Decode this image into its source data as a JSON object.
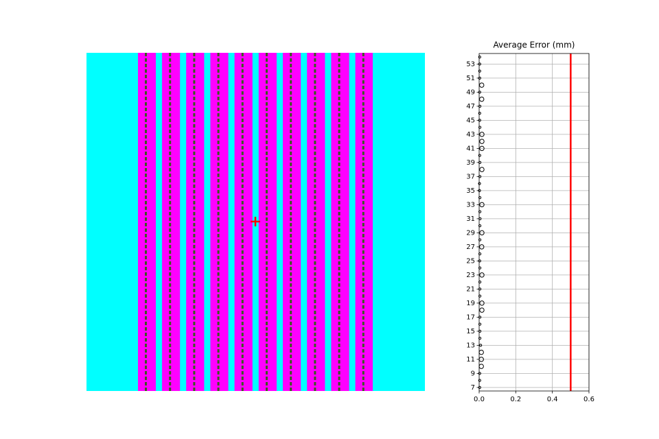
{
  "chart_data": {
    "type": "scatter",
    "orientation": "horizontal",
    "title": "Average Error (mm)",
    "categories": [
      7,
      null,
      9,
      null,
      11,
      null,
      13,
      null,
      15,
      null,
      17,
      null,
      19,
      null,
      21,
      null,
      23,
      null,
      25,
      null,
      27,
      null,
      29,
      null,
      31,
      null,
      33,
      null,
      35,
      null,
      37,
      null,
      39,
      null,
      41,
      null,
      43,
      null,
      45,
      null,
      47,
      null,
      49,
      null,
      51,
      null,
      53,
      null
    ],
    "values": [
      0.003,
      0.003,
      0.003,
      0.012,
      0.012,
      0.012,
      0.008,
      0.004,
      0.004,
      0.004,
      0.004,
      0.015,
      0.015,
      0.004,
      0.004,
      0.004,
      0.015,
      0.004,
      0.003,
      0.004,
      0.014,
      0.004,
      0.015,
      0.004,
      0.005,
      0.004,
      0.015,
      0.004,
      0.002,
      0.002,
      0.004,
      0.015,
      0.004,
      0.003,
      0.015,
      0.015,
      0.015,
      0.004,
      0.003,
      0.003,
      0.004,
      0.014,
      0.003,
      0.014,
      0.003,
      0.003,
      0.003,
      0.003
    ],
    "color": "#000000",
    "threshold": 0.5,
    "threshold_color": "#ff0000",
    "xlim": [
      0,
      0.6
    ],
    "xticks": [
      {
        "value": 0,
        "label": "0.0"
      },
      0.2,
      0.4,
      0.6
    ],
    "grid": true
  }
}
